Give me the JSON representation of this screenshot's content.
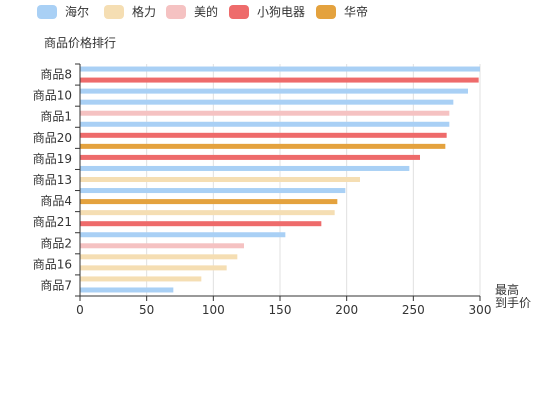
{
  "chart_data": {
    "type": "bar",
    "orientation": "horizontal",
    "y_axis_name": "商品价格排行",
    "x_axis_name": "最高\n到手价",
    "xlim": [
      0,
      300
    ],
    "x_ticks": [
      0,
      50,
      100,
      150,
      200,
      250,
      300
    ],
    "grid": "vertical",
    "legend_position": "top-left",
    "legend": [
      {
        "name": "海尔",
        "color": "#A9D0F5"
      },
      {
        "name": "格力",
        "color": "#F5DEB3"
      },
      {
        "name": "美的",
        "color": "#F5C2C2"
      },
      {
        "name": "小狗电器",
        "color": "#EE6B6B"
      },
      {
        "name": "华帝",
        "color": "#E4A23E"
      }
    ],
    "categories": [
      "商品8",
      "商品10",
      "商品1",
      "商品20",
      "商品19",
      "商品13",
      "商品4",
      "商品21",
      "商品2",
      "商品16",
      "商品7"
    ],
    "bars": [
      {
        "category": "商品8",
        "brand": "海尔",
        "value": 300
      },
      {
        "category": "商品8",
        "brand": "小狗电器",
        "value": 299
      },
      {
        "category": "商品10",
        "brand": "海尔",
        "value": 291
      },
      {
        "category": "商品10",
        "brand": "海尔",
        "value": 280
      },
      {
        "category": "商品1",
        "brand": "美的",
        "value": 277
      },
      {
        "category": "商品1",
        "brand": "海尔",
        "value": 277
      },
      {
        "category": "商品20",
        "brand": "小狗电器",
        "value": 275
      },
      {
        "category": "商品20",
        "brand": "华帝",
        "value": 274
      },
      {
        "category": "商品19",
        "brand": "小狗电器",
        "value": 255
      },
      {
        "category": "商品19",
        "brand": "海尔",
        "value": 247
      },
      {
        "category": "商品13",
        "brand": "格力",
        "value": 210
      },
      {
        "category": "商品13",
        "brand": "海尔",
        "value": 199
      },
      {
        "category": "商品4",
        "brand": "华帝",
        "value": 193
      },
      {
        "category": "商品4",
        "brand": "格力",
        "value": 191
      },
      {
        "category": "商品21",
        "brand": "小狗电器",
        "value": 181
      },
      {
        "category": "商品21",
        "brand": "海尔",
        "value": 154
      },
      {
        "category": "商品2",
        "brand": "美的",
        "value": 123
      },
      {
        "category": "商品2",
        "brand": "格力",
        "value": 118
      },
      {
        "category": "商品16",
        "brand": "格力",
        "value": 110
      },
      {
        "category": "商品16",
        "brand": "格力",
        "value": 91
      },
      {
        "category": "商品7",
        "brand": "海尔",
        "value": 70
      }
    ]
  }
}
